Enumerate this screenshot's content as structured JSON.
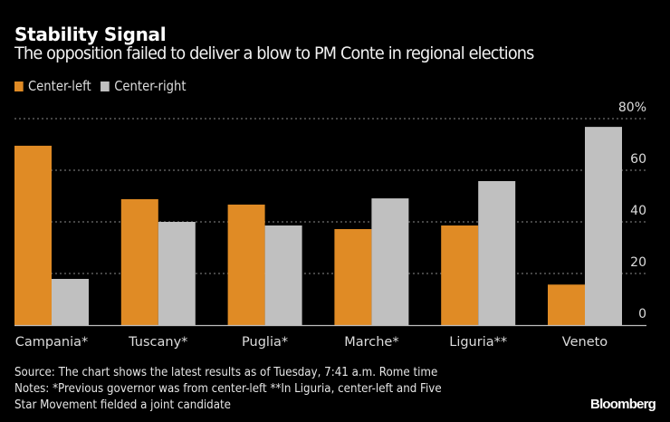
{
  "chart_data": {
    "type": "bar",
    "title": "Stability Signal",
    "subtitle": "The opposition failed to deliver a blow to PM Conte in regional elections",
    "categories": [
      "Campania*",
      "Tuscany*",
      "Puglia*",
      "Marche*",
      "Liguria**",
      "Veneto"
    ],
    "series": [
      {
        "name": "Center-left",
        "color": "#E08B25",
        "values": [
          69.5,
          48.8,
          46.7,
          37.2,
          38.6,
          15.7
        ]
      },
      {
        "name": "Center-right",
        "color": "#C0C0C0",
        "values": [
          17.9,
          40.0,
          38.6,
          49.1,
          55.8,
          76.8
        ]
      }
    ],
    "xlabel": "",
    "ylabel": "",
    "ylim": [
      0,
      80
    ],
    "yticks": [
      0,
      20,
      40,
      60,
      80
    ],
    "ytick_labels": [
      "0",
      "20",
      "40",
      "60",
      "80%"
    ],
    "y_axis_side": "right",
    "grid": true,
    "legend_position": "top-left"
  },
  "footer": {
    "source": "Source: The chart shows the latest results as of Tuesday, 7:41 a.m. Rome time",
    "notes_line1": "Notes: *Previous governor was from center-left **In Liguria, center-left and Five",
    "notes_line2": "Star Movement fielded a joint candidate",
    "brand": "Bloomberg"
  }
}
